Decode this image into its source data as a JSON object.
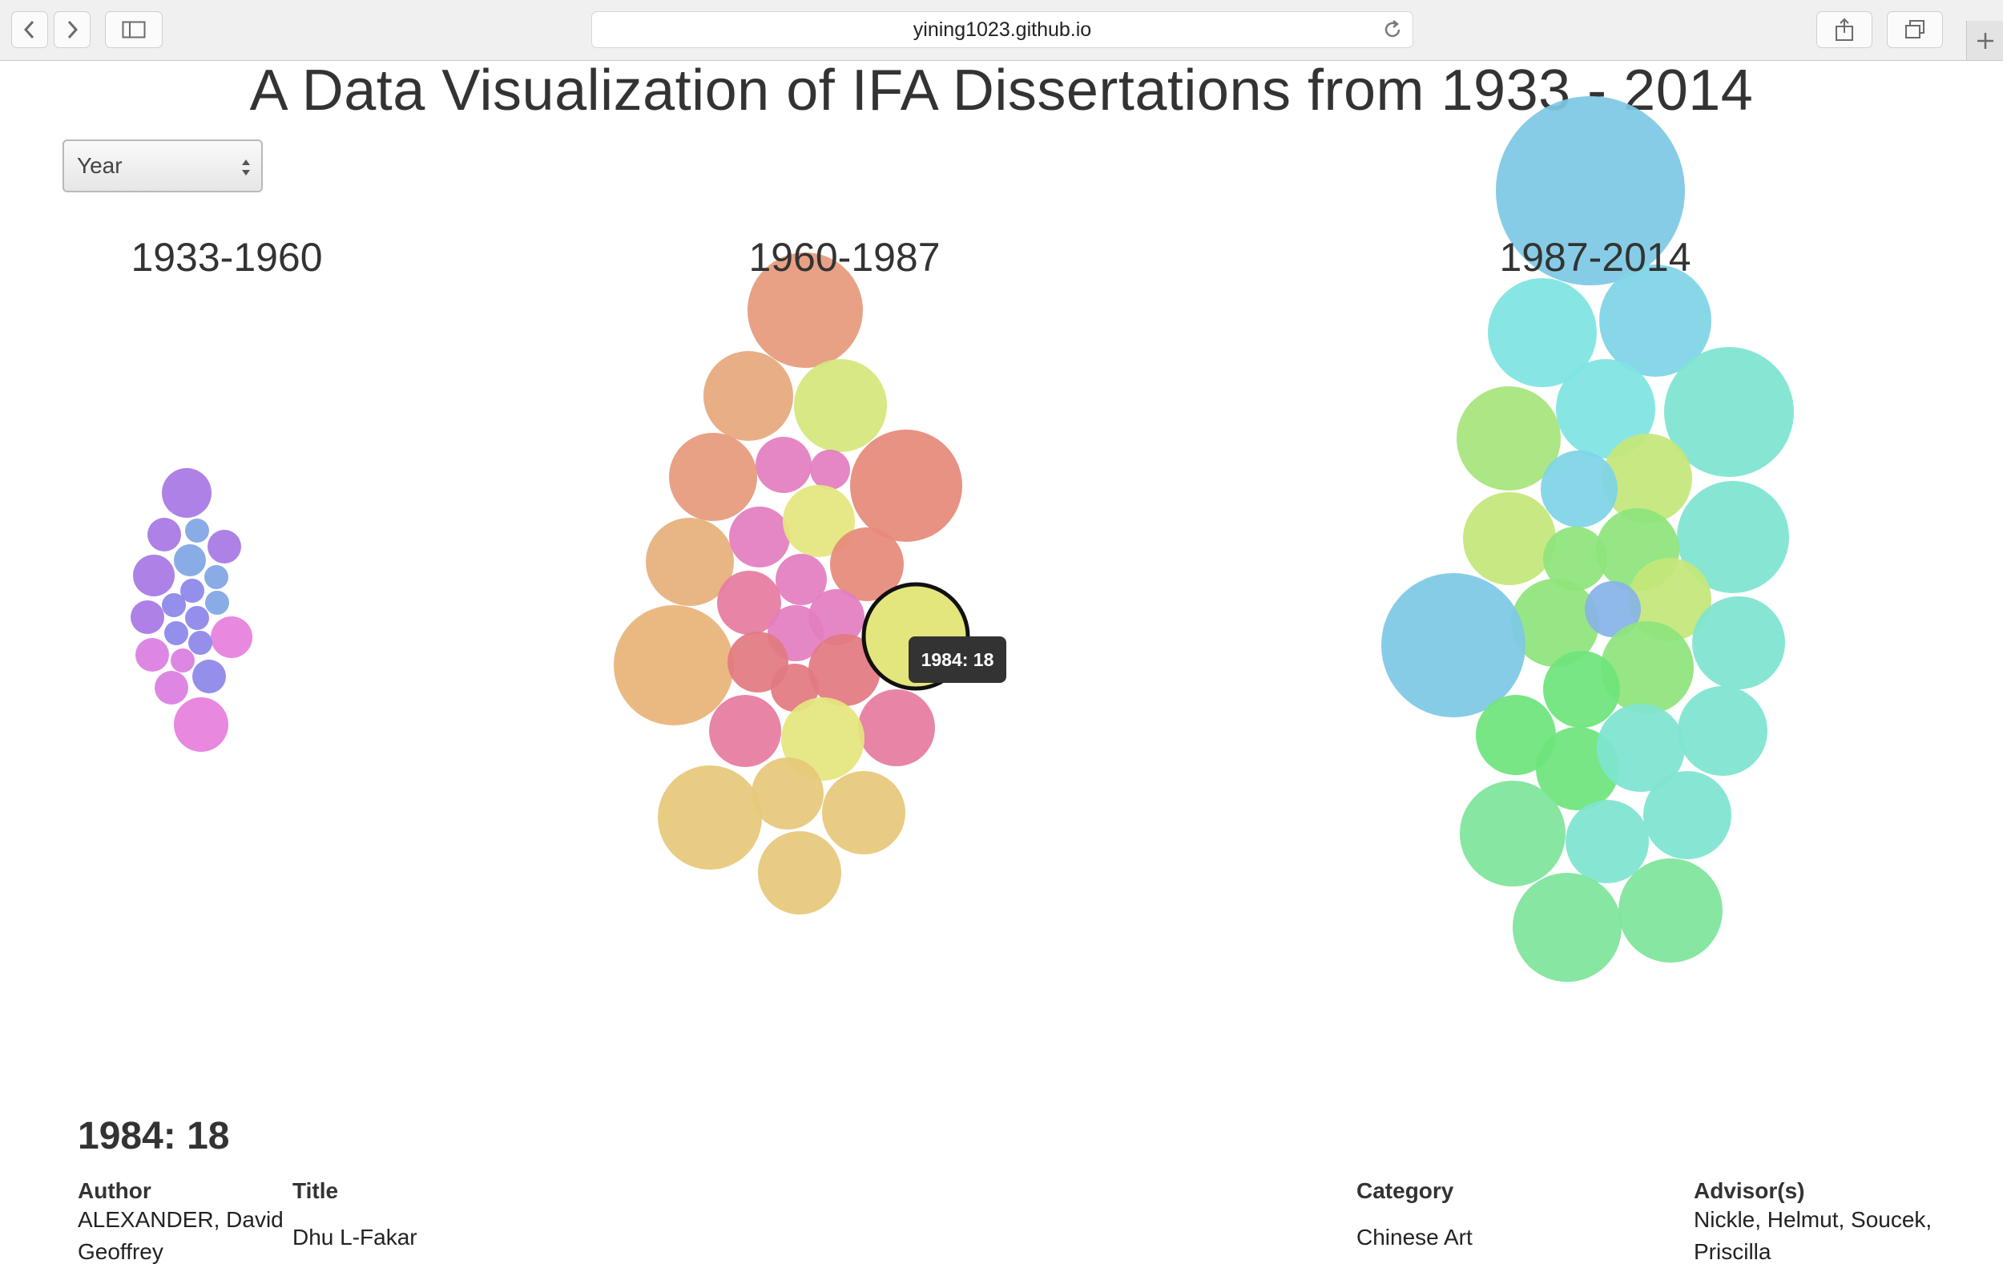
{
  "browser": {
    "url": "yining1023.github.io"
  },
  "page": {
    "title": "A Data Visualization of IFA Dissertations from 1933 - 2014",
    "sort_select": {
      "value": "Year"
    }
  },
  "periods": [
    {
      "label": "1933-1960"
    },
    {
      "label": "1960-1987"
    },
    {
      "label": "1987-2014"
    }
  ],
  "tooltip": {
    "text": "1984: 18"
  },
  "selection": {
    "heading": "1984: 18",
    "columns": {
      "author": "Author",
      "title": "Title",
      "category": "Category",
      "advisors": "Advisor(s)"
    },
    "first_row": {
      "author": "ALEXANDER, David Geoffrey",
      "title": "Dhu L-Fakar",
      "category": "Chinese Art",
      "advisors": "Nickle, Helmut, Soucek, Priscilla"
    }
  },
  "colors": {
    "period1": [
      "#a877e4",
      "#80a6e4",
      "#8b86e8",
      "#da7ee0",
      "#e67fdd",
      "#7ea4e6"
    ],
    "period2": [
      "#e69a7c",
      "#e6a87c",
      "#d4e67c",
      "#e37ec0",
      "#e68a7a",
      "#e6b07c",
      "#e8b478",
      "#e67ca0",
      "#e4e67e",
      "#e6c87a",
      "#e27a80"
    ],
    "period3": [
      "#7ec8e4",
      "#7ee4e2",
      "#7ed4e6",
      "#a6e47c",
      "#c4e67a",
      "#8ee47c",
      "#7ee4d0",
      "#6ee47c",
      "#7ee49a",
      "#86b4e6"
    ],
    "highlight": "#e3e67c"
  }
}
